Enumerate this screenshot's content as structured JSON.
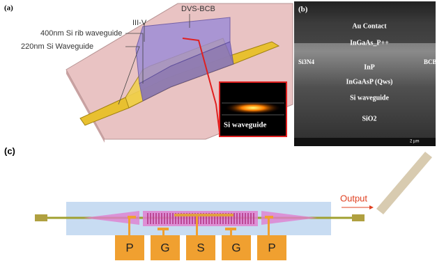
{
  "panel_a": {
    "label": "(a)",
    "callouts": [
      "DVS-BCB",
      "400nm Si rib waveguide",
      "III-V",
      "220nm Si Waveguide"
    ],
    "inset": "Si waveguide"
  },
  "panel_b": {
    "label": "(b)",
    "layers": [
      "Au Contact",
      "InGaAs_P++",
      "Si3N4",
      "InP",
      "BCB",
      "InGaAsP (Qws)",
      "Si waveguide",
      "SiO2"
    ],
    "scale": "2 µm"
  },
  "panel_c": {
    "label": "(c)",
    "output": "Output",
    "pads": [
      "P",
      "G",
      "S",
      "G",
      "P"
    ]
  }
}
